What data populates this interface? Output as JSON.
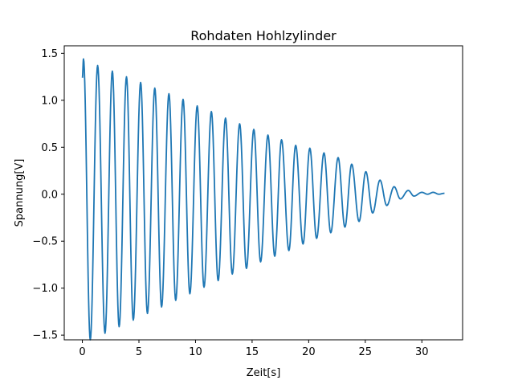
{
  "chart_data": {
    "type": "line",
    "title": "Rohdaten Hohlzylinder",
    "xlabel": "Zeit[s]",
    "ylabel": "Spannung[V]",
    "xlim": [
      -1.6,
      33.6
    ],
    "ylim": [
      -1.55,
      1.58
    ],
    "x_ticks": [
      0,
      5,
      10,
      15,
      20,
      25,
      30
    ],
    "x_tick_labels": [
      "0",
      "5",
      "10",
      "15",
      "20",
      "25",
      "30"
    ],
    "y_ticks": [
      -1.5,
      -1.0,
      -0.5,
      0.0,
      0.5,
      1.0,
      1.5
    ],
    "y_tick_labels": [
      "−1.5",
      "−1.0",
      "−0.5",
      "0.0",
      "0.5",
      "1.0",
      "1.5"
    ],
    "grid": false,
    "series": [
      {
        "color": "#1f77b4",
        "x": [
          0.0,
          0.1,
          0.7,
          1.35,
          2.0,
          2.65,
          3.25,
          3.9,
          4.5,
          5.15,
          5.75,
          6.4,
          7.0,
          7.65,
          8.25,
          8.9,
          9.5,
          10.15,
          10.75,
          11.4,
          12.0,
          12.65,
          13.25,
          13.9,
          14.5,
          15.15,
          15.75,
          16.4,
          17.0,
          17.6,
          18.25,
          18.85,
          19.5,
          20.1,
          20.7,
          21.35,
          21.95,
          22.6,
          23.2,
          23.8,
          24.45,
          25.05,
          25.65,
          26.3,
          26.9,
          27.55,
          28.1,
          28.8,
          29.3,
          30.0,
          30.5,
          31.0,
          31.5,
          32.0
        ],
        "y": [
          1.24,
          1.44,
          -1.55,
          1.37,
          -1.48,
          1.31,
          -1.41,
          1.25,
          -1.34,
          1.19,
          -1.27,
          1.13,
          -1.2,
          1.07,
          -1.13,
          1.01,
          -1.06,
          0.94,
          -0.99,
          0.88,
          -0.92,
          0.81,
          -0.85,
          0.75,
          -0.79,
          0.69,
          -0.72,
          0.63,
          -0.66,
          0.58,
          -0.6,
          0.52,
          -0.53,
          0.49,
          -0.47,
          0.44,
          -0.41,
          0.39,
          -0.35,
          0.32,
          -0.29,
          0.24,
          -0.2,
          0.15,
          -0.12,
          0.08,
          -0.05,
          0.04,
          -0.02,
          0.02,
          0.0,
          0.02,
          0.0,
          0.01
        ]
      }
    ]
  }
}
